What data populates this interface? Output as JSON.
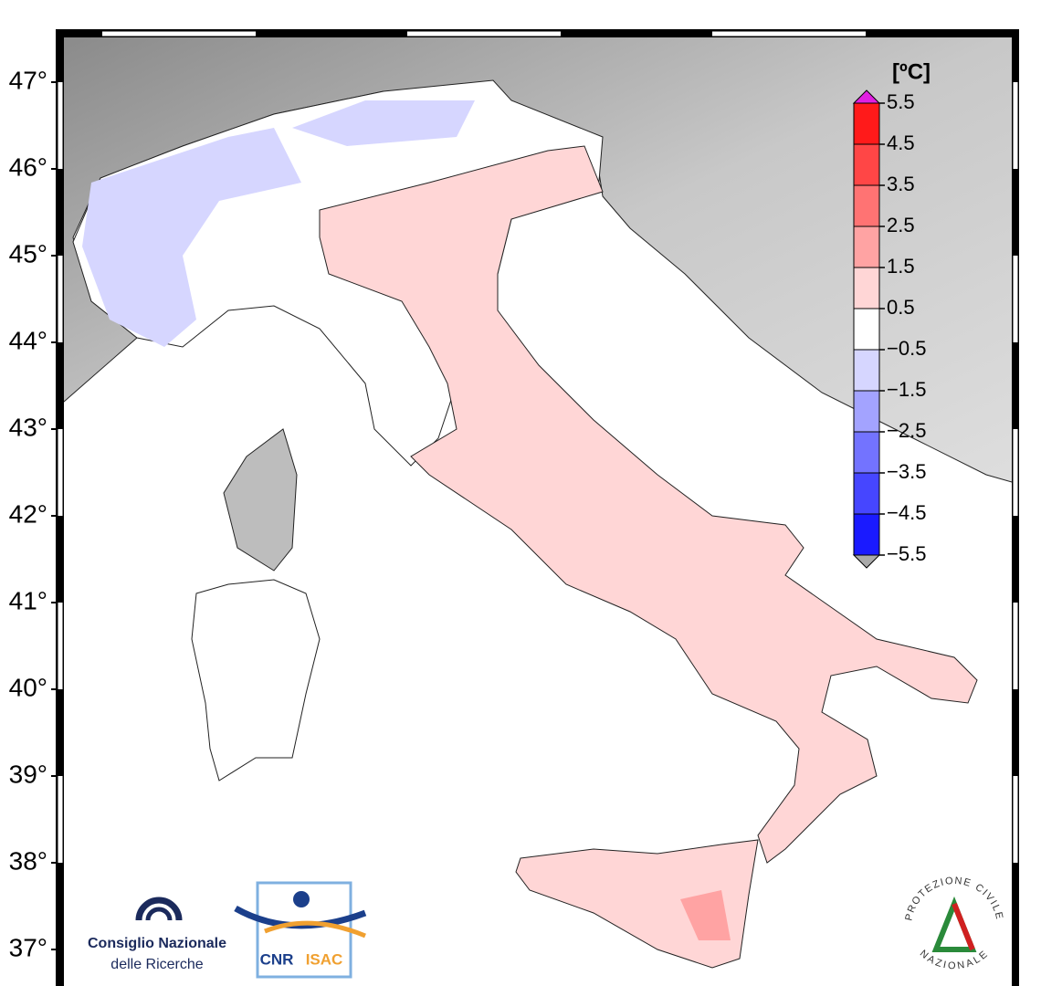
{
  "map": {
    "lat_ticks": [
      {
        "value": 47,
        "label": "47°"
      },
      {
        "value": 46,
        "label": "46°"
      },
      {
        "value": 45,
        "label": "45°"
      },
      {
        "value": 44,
        "label": "44°"
      },
      {
        "value": 43,
        "label": "43°"
      },
      {
        "value": 42,
        "label": "42°"
      },
      {
        "value": 41,
        "label": "41°"
      },
      {
        "value": 40,
        "label": "40°"
      },
      {
        "value": 39,
        "label": "39°"
      },
      {
        "value": 38,
        "label": "38°"
      },
      {
        "value": 37,
        "label": "37°"
      }
    ]
  },
  "colorbar": {
    "title": "[ºC]",
    "ticks": [
      5.5,
      4.5,
      3.5,
      2.5,
      1.5,
      0.5,
      {
        "value": -0.5,
        "label": "−0.5"
      },
      {
        "value": -1.5,
        "label": "−1.5"
      },
      {
        "value": -2.5,
        "label": "−2.5"
      },
      {
        "value": -3.5,
        "label": "−3.5"
      },
      {
        "value": -4.5,
        "label": "−4.5"
      },
      {
        "value": -5.5,
        "label": "−5.5"
      }
    ],
    "colors": [
      "#ff1a1a",
      "#ff4646",
      "#ff7373",
      "#ffa3a3",
      "#ffd6d6",
      "#ffffff",
      "#d6d6ff",
      "#a3a3ff",
      "#7373ff",
      "#4646ff",
      "#1a1aff"
    ],
    "over_color": "#e020e0",
    "under_color": "#aaaaaa"
  },
  "logos": {
    "cnr_line1": "Consiglio Nazionale",
    "cnr_line2": "delle Ricerche",
    "isac_left": "CNR",
    "isac_right": "ISAC",
    "pc_top": "PROTEZIONE CIVILE",
    "pc_bottom": "NAZIONALE"
  }
}
